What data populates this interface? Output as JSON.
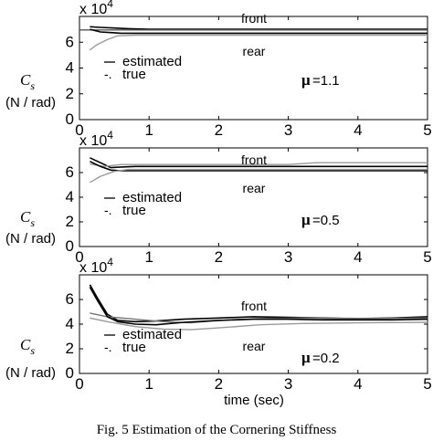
{
  "caption": "Fig. 5 Estimation of the Cornering Stiffness",
  "chart_data": [
    {
      "type": "line",
      "multiplier_label": "x 10",
      "multiplier_exponent": "4",
      "ylabel": "C",
      "ylabel_sub": "s",
      "yunit": "(N / rad)",
      "mu_symbol": "μ",
      "mu_value": "=1.1",
      "front_label": "front",
      "rear_label": "rear",
      "legend": [
        {
          "marker": "—",
          "label": "estimated"
        },
        {
          "marker": "-.",
          "label": "true"
        }
      ],
      "xlim": [
        0,
        5
      ],
      "ylim": [
        0,
        80000
      ],
      "xticks": [
        "0",
        "1",
        "2",
        "3",
        "4",
        "5"
      ],
      "yticks": [
        "0",
        "2",
        "4",
        "6"
      ],
      "grid": false,
      "series": [
        {
          "group": "front",
          "kind": "estimated",
          "color": "#000000",
          "x": [
            0.15,
            0.3,
            0.5,
            0.7,
            1.0,
            5.0
          ],
          "y": [
            72000,
            71500,
            71000,
            70500,
            70000,
            70000
          ]
        },
        {
          "group": "front",
          "kind": "true",
          "color": "#555555",
          "x": [
            0,
            5.0
          ],
          "y": [
            69500,
            69500
          ]
        },
        {
          "group": "rear",
          "kind": "estimated",
          "color": "#000000",
          "x": [
            0.15,
            0.3,
            0.45,
            0.6,
            1.0,
            5.0
          ],
          "y": [
            70000,
            68000,
            67500,
            67000,
            67000,
            67000
          ]
        },
        {
          "group": "rear",
          "kind": "true",
          "color": "#9a9a9a",
          "x": [
            0.15,
            0.25,
            0.4,
            0.55,
            0.8,
            5.0
          ],
          "y": [
            54000,
            58000,
            62000,
            65000,
            65500,
            65500
          ]
        }
      ]
    },
    {
      "type": "line",
      "multiplier_label": "x 10",
      "multiplier_exponent": "4",
      "ylabel": "C",
      "ylabel_sub": "s",
      "yunit": "(N / rad)",
      "mu_symbol": "μ",
      "mu_value": "=0.5",
      "front_label": "front",
      "rear_label": "rear",
      "legend": [
        {
          "marker": "—",
          "label": "estimated"
        },
        {
          "marker": "-.",
          "label": "true"
        }
      ],
      "xlim": [
        0,
        5
      ],
      "ylim": [
        0,
        80000
      ],
      "xticks": [
        "0",
        "1",
        "2",
        "3",
        "4",
        "5"
      ],
      "yticks": [
        "0",
        "2",
        "4",
        "6"
      ],
      "grid": false,
      "series": [
        {
          "group": "front",
          "kind": "estimated",
          "color": "#000000",
          "x": [
            0.15,
            0.3,
            0.45,
            0.6,
            0.8,
            5.0
          ],
          "y": [
            72000,
            68000,
            64000,
            64500,
            65000,
            65000
          ]
        },
        {
          "group": "front",
          "kind": "true",
          "color": "#9a9a9a",
          "x": [
            0.15,
            0.35,
            0.6,
            3.0,
            3.4,
            5.0
          ],
          "y": [
            67000,
            65000,
            66500,
            66500,
            68000,
            68000
          ]
        },
        {
          "group": "rear",
          "kind": "estimated",
          "color": "#000000",
          "x": [
            0.15,
            0.3,
            0.45,
            0.6,
            1.0,
            5.0
          ],
          "y": [
            69000,
            65000,
            62000,
            61500,
            61500,
            61500
          ]
        },
        {
          "group": "rear",
          "kind": "true",
          "color": "#9a9a9a",
          "x": [
            0.15,
            0.3,
            0.5,
            0.7,
            5.0
          ],
          "y": [
            52000,
            57000,
            61000,
            62500,
            62500
          ]
        }
      ]
    },
    {
      "type": "line",
      "multiplier_label": "x 10",
      "multiplier_exponent": "4",
      "ylabel": "C",
      "ylabel_sub": "s",
      "yunit": "(N / rad)",
      "mu_symbol": "μ",
      "mu_value": "=0.2",
      "front_label": "front",
      "rear_label": "rear",
      "legend": [
        {
          "marker": "—",
          "label": "estimated"
        },
        {
          "marker": "-.",
          "label": "true"
        }
      ],
      "xlabel": "time (sec)",
      "xlim": [
        0,
        5
      ],
      "ylim": [
        0,
        80000
      ],
      "xticks": [
        "0",
        "1",
        "2",
        "3",
        "4",
        "5"
      ],
      "yticks": [
        "0",
        "2",
        "4",
        "6"
      ],
      "grid": false,
      "series": [
        {
          "group": "front",
          "kind": "estimated",
          "color": "#000000",
          "x": [
            0.15,
            0.25,
            0.4,
            0.55,
            0.8,
            1.1,
            1.5,
            2.0,
            2.5,
            3.0,
            3.5,
            4.0,
            4.5,
            5.0
          ],
          "y": [
            72000,
            62000,
            48000,
            43000,
            42000,
            42500,
            44000,
            45000,
            46000,
            45500,
            45000,
            44500,
            45000,
            46000
          ]
        },
        {
          "group": "front",
          "kind": "true",
          "color": "#777777",
          "x": [
            0.15,
            0.4,
            0.8,
            1.2,
            1.6,
            2.0,
            2.6,
            3.2,
            4.0,
            5.0
          ],
          "y": [
            49000,
            46000,
            44000,
            42000,
            41000,
            43000,
            44500,
            45000,
            44500,
            45000
          ]
        },
        {
          "group": "rear",
          "kind": "estimated",
          "color": "#000000",
          "x": [
            0.15,
            0.25,
            0.4,
            0.55,
            0.8,
            1.1,
            1.5,
            2.0,
            2.5,
            3.0,
            3.5,
            4.0,
            4.5,
            5.0
          ],
          "y": [
            70000,
            60000,
            46000,
            42000,
            40000,
            39500,
            41500,
            43000,
            44000,
            44000,
            43500,
            43500,
            43500,
            44000
          ]
        },
        {
          "group": "rear",
          "kind": "true",
          "color": "#9a9a9a",
          "x": [
            0.15,
            0.4,
            0.8,
            1.2,
            1.6,
            2.0,
            2.6,
            3.2,
            4.0,
            5.0
          ],
          "y": [
            45000,
            42000,
            38000,
            36000,
            35500,
            37000,
            39500,
            40500,
            41000,
            41500
          ]
        }
      ]
    }
  ]
}
